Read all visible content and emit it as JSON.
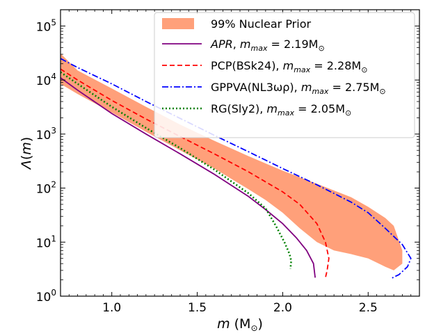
{
  "chart_data": {
    "type": "line",
    "xlabel": "m (M⊙)",
    "ylabel": "Λ(m)",
    "xlim": [
      0.7,
      2.8
    ],
    "ylim": [
      1,
      200000
    ],
    "yscale": "log",
    "grid": false,
    "legend_position": "top-right",
    "x_ticks": [
      1.0,
      1.5,
      2.0,
      2.5
    ],
    "x_tick_labels": [
      "1.0",
      "1.5",
      "2.0",
      "2.5"
    ],
    "y_ticks": [
      1,
      10,
      100,
      1000,
      10000,
      100000
    ],
    "y_tick_labels": [
      {
        "base": "10",
        "exp": "0"
      },
      {
        "base": "10",
        "exp": "1"
      },
      {
        "base": "10",
        "exp": "2"
      },
      {
        "base": "10",
        "exp": "3"
      },
      {
        "base": "10",
        "exp": "4"
      },
      {
        "base": "10",
        "exp": "5"
      }
    ],
    "band": {
      "name": "99% Nuclear Prior",
      "color": "#FFA07A",
      "upper": [
        [
          0.7,
          31000
        ],
        [
          0.8,
          15000
        ],
        [
          1.0,
          7000
        ],
        [
          1.2,
          3200
        ],
        [
          1.4,
          1500
        ],
        [
          1.6,
          750
        ],
        [
          1.8,
          390
        ],
        [
          2.0,
          210
        ],
        [
          2.2,
          120
        ],
        [
          2.4,
          68
        ],
        [
          2.5,
          45
        ],
        [
          2.6,
          28
        ],
        [
          2.65,
          20
        ],
        [
          2.7,
          7
        ]
      ],
      "lower": [
        [
          2.7,
          4
        ],
        [
          2.65,
          3
        ],
        [
          2.6,
          3.5
        ],
        [
          2.5,
          5
        ],
        [
          2.4,
          6
        ],
        [
          2.3,
          7
        ],
        [
          2.2,
          10
        ],
        [
          2.1,
          18
        ],
        [
          2.0,
          35
        ],
        [
          1.9,
          60
        ],
        [
          1.8,
          95
        ],
        [
          1.6,
          230
        ],
        [
          1.4,
          500
        ],
        [
          1.2,
          1100
        ],
        [
          1.0,
          2500
        ],
        [
          0.8,
          5500
        ],
        [
          0.7,
          8500
        ]
      ]
    },
    "series": [
      {
        "name": "APR",
        "label_italic": "APR",
        "label_rest": ", m",
        "label_sub": "max",
        "label_value": " = 2.19M",
        "label_sun": "⊙",
        "color": "#800080",
        "dash": "solid",
        "points": [
          [
            0.7,
            11000
          ],
          [
            0.8,
            6500
          ],
          [
            1.0,
            2400
          ],
          [
            1.2,
            1000
          ],
          [
            1.4,
            430
          ],
          [
            1.6,
            180
          ],
          [
            1.8,
            70
          ],
          [
            1.9,
            40
          ],
          [
            2.0,
            22
          ],
          [
            2.08,
            12
          ],
          [
            2.14,
            7
          ],
          [
            2.18,
            4
          ],
          [
            2.19,
            2.2
          ]
        ]
      },
      {
        "name": "PCP(BSk24)",
        "label_italic": "",
        "label_rest": "PCP(BSk24), m",
        "label_sub": "max",
        "label_value": " = 2.28M",
        "label_sun": "⊙",
        "color": "#FF0000",
        "dash": "dashed",
        "points": [
          [
            0.7,
            16000
          ],
          [
            0.8,
            10000
          ],
          [
            1.0,
            4200
          ],
          [
            1.2,
            1900
          ],
          [
            1.4,
            900
          ],
          [
            1.6,
            430
          ],
          [
            1.8,
            200
          ],
          [
            2.0,
            85
          ],
          [
            2.1,
            50
          ],
          [
            2.2,
            22
          ],
          [
            2.25,
            10
          ],
          [
            2.27,
            5
          ],
          [
            2.26,
            3
          ],
          [
            2.25,
            2.2
          ]
        ]
      },
      {
        "name": "GPPVA(NL3ωρ)",
        "label_italic": "",
        "label_rest": "GPPVA(NL3ωρ), m",
        "label_sub": "max",
        "label_value": " = 2.75M",
        "label_sun": "⊙",
        "color": "#0000FF",
        "dash": "dashdot",
        "points": [
          [
            0.7,
            25000
          ],
          [
            0.8,
            17000
          ],
          [
            1.0,
            8500
          ],
          [
            1.2,
            4000
          ],
          [
            1.4,
            1950
          ],
          [
            1.6,
            950
          ],
          [
            1.8,
            470
          ],
          [
            2.0,
            230
          ],
          [
            2.2,
            115
          ],
          [
            2.4,
            55
          ],
          [
            2.5,
            35
          ],
          [
            2.6,
            18
          ],
          [
            2.7,
            9
          ],
          [
            2.75,
            5
          ],
          [
            2.73,
            3.5
          ],
          [
            2.68,
            2.5
          ],
          [
            2.63,
            2.1
          ]
        ]
      },
      {
        "name": "RG(Sly2)",
        "label_italic": "",
        "label_rest": "RG(Sly2), m",
        "label_sub": "max",
        "label_value": " = 2.05M",
        "label_sun": "⊙",
        "color": "#008000",
        "dash": "dotted",
        "points": [
          [
            0.7,
            14000
          ],
          [
            0.8,
            8500
          ],
          [
            1.0,
            3200
          ],
          [
            1.2,
            1300
          ],
          [
            1.4,
            550
          ],
          [
            1.6,
            220
          ],
          [
            1.8,
            80
          ],
          [
            1.9,
            42
          ],
          [
            1.96,
            20
          ],
          [
            2.01,
            10
          ],
          [
            2.04,
            6
          ],
          [
            2.05,
            4.5
          ],
          [
            2.045,
            3.2
          ]
        ]
      }
    ]
  }
}
